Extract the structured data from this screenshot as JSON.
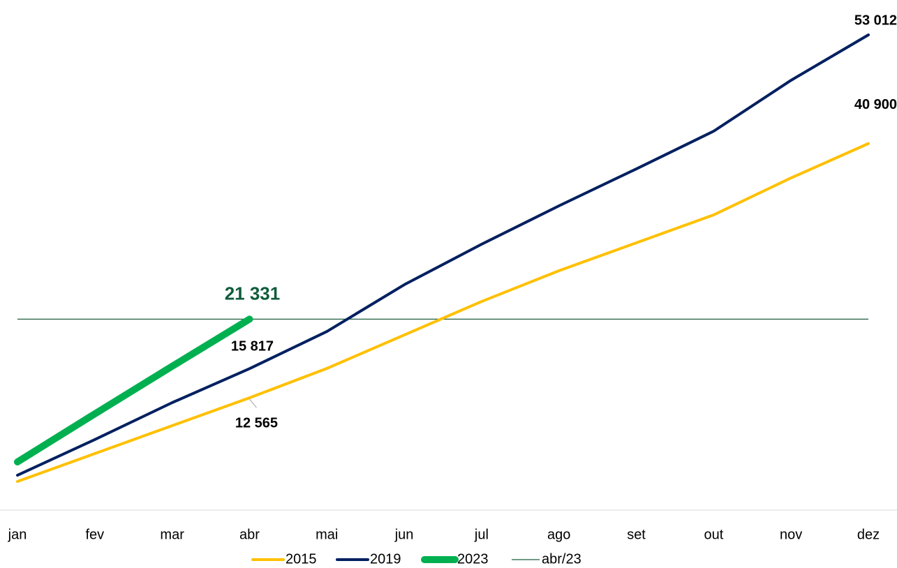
{
  "chart_data": {
    "type": "line",
    "categories": [
      "jan",
      "fev",
      "mar",
      "abr",
      "mai",
      "jun",
      "jul",
      "ago",
      "set",
      "out",
      "nov",
      "dez"
    ],
    "series": [
      {
        "name": "2015",
        "color": "#ffc000",
        "values": [
          3243,
          6350,
          9460,
          12565,
          15840,
          19570,
          23300,
          26730,
          29840,
          32950,
          37070,
          40900
        ],
        "value_labels": [
          null,
          null,
          null,
          "12 565",
          null,
          null,
          null,
          null,
          null,
          null,
          null,
          "40 900"
        ]
      },
      {
        "name": "2019",
        "color": "#002060",
        "values": [
          3940,
          7910,
          12030,
          15817,
          19960,
          25170,
          29680,
          33960,
          38080,
          42280,
          47950,
          53012
        ],
        "value_labels": [
          null,
          null,
          null,
          "15 817",
          null,
          null,
          null,
          null,
          null,
          null,
          null,
          "53 012"
        ]
      },
      {
        "name": "2023",
        "color": "#00b050",
        "values": [
          5420,
          10780,
          16080,
          21331,
          null,
          null,
          null,
          null,
          null,
          null,
          null,
          null
        ],
        "value_labels": [
          null,
          null,
          null,
          "21 331",
          null,
          null,
          null,
          null,
          null,
          null,
          null,
          null
        ]
      }
    ],
    "reference_line": {
      "name": "abr/23",
      "value": 21331,
      "color": "#1f5c3e"
    },
    "ylim": [
      0,
      56900
    ],
    "legend": "bottom"
  }
}
